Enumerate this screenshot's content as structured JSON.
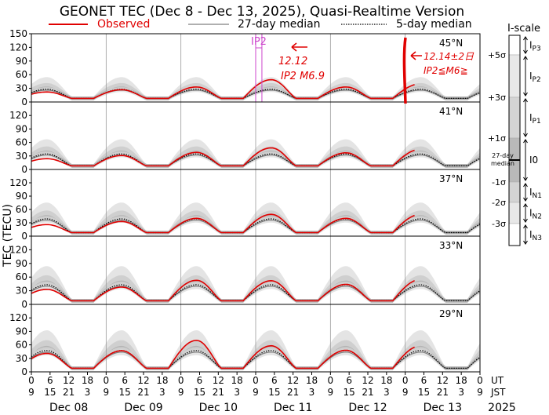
{
  "title": "GEONET TEC (Dec 8 - Dec 13, 2025), Quasi-Realtime Version",
  "legend": {
    "observed": "Observed",
    "median27": "27-day median",
    "median5": "5-day median"
  },
  "ylabel": "TEC (TECU)",
  "colors": {
    "observed": "#e00000",
    "median27": "#7f7f7f",
    "median5": "#000000",
    "band_outer": "#e4e4e4",
    "band_mid": "#cfcfcf",
    "band_inner": "#b5b5b5",
    "annotation": "#e00000",
    "ip_marker": "#cc44cc"
  },
  "chart_data": {
    "type": "line",
    "ylim": [
      0,
      150
    ],
    "yticks": [
      "0",
      "30",
      "60",
      "90",
      "120",
      "150"
    ],
    "yticks_lower": [
      "0",
      "30",
      "60",
      "90",
      "120"
    ],
    "xlim_hours": [
      0,
      144
    ],
    "time_ut_labels": [
      "0",
      "6",
      "12",
      "18",
      "0",
      "6",
      "12",
      "18",
      "0",
      "6",
      "12",
      "18",
      "0",
      "6",
      "12",
      "18",
      "0",
      "6",
      "12",
      "18",
      "0",
      "6",
      "12",
      "18",
      "0"
    ],
    "time_jst_labels": [
      "9",
      "15",
      "21",
      "3",
      "9",
      "15",
      "21",
      "3",
      "9",
      "15",
      "21",
      "3",
      "9",
      "15",
      "21",
      "3",
      "9",
      "15",
      "21",
      "3",
      "9",
      "15",
      "21",
      "3",
      "9"
    ],
    "time_axis_title_ut": "UT",
    "time_axis_title_jst": "JST",
    "day_labels": [
      "Dec 08",
      "Dec 09",
      "Dec 10",
      "Dec 11",
      "Dec 12",
      "Dec 13"
    ],
    "year_label": "2025",
    "panels": [
      {
        "label": "45°N",
        "median_peak": 26,
        "obs_peaks": [
          22,
          27,
          33,
          49,
          33,
          40
        ],
        "obs_end_hour": 123
      },
      {
        "label": "41°N",
        "median_peak": 32,
        "obs_peaks": [
          24,
          31,
          38,
          48,
          37,
          45
        ],
        "obs_end_hour": 123
      },
      {
        "label": "37°N",
        "median_peak": 36,
        "obs_peaks": [
          26,
          33,
          40,
          49,
          40,
          49
        ],
        "obs_end_hour": 123
      },
      {
        "label": "33°N",
        "median_peak": 40,
        "obs_peaks": [
          33,
          38,
          53,
          52,
          44,
          55
        ],
        "obs_end_hour": 123
      },
      {
        "label": "29°N",
        "median_peak": 44,
        "obs_peaks": [
          41,
          47,
          70,
          58,
          48,
          58
        ],
        "obs_end_hour": 123
      }
    ],
    "median_night_level": 8,
    "ip_marker": {
      "label": "IP2",
      "hours": [
        72,
        74
      ]
    }
  },
  "annotations": {
    "note1_line1": "12.12",
    "note1_line2": "IP2 M6.9",
    "note2_line1": "12.14±2日",
    "note2_line2": "IP2≦M6≧"
  },
  "iscale": {
    "title": "I-scale",
    "sigma_labels": [
      "+5σ",
      "+3σ",
      "+1σ",
      "-1σ",
      "-2σ",
      "-3σ"
    ],
    "median_label_1": "27-day",
    "median_label_2": "median",
    "levels": [
      {
        "base": "I",
        "sub": "P3"
      },
      {
        "base": "I",
        "sub": "P2"
      },
      {
        "base": "I",
        "sub": "P1"
      },
      {
        "base": "I0",
        "sub": ""
      },
      {
        "base": "I",
        "sub": "N1"
      },
      {
        "base": "I",
        "sub": "N2"
      },
      {
        "base": "I",
        "sub": "N3"
      }
    ]
  }
}
